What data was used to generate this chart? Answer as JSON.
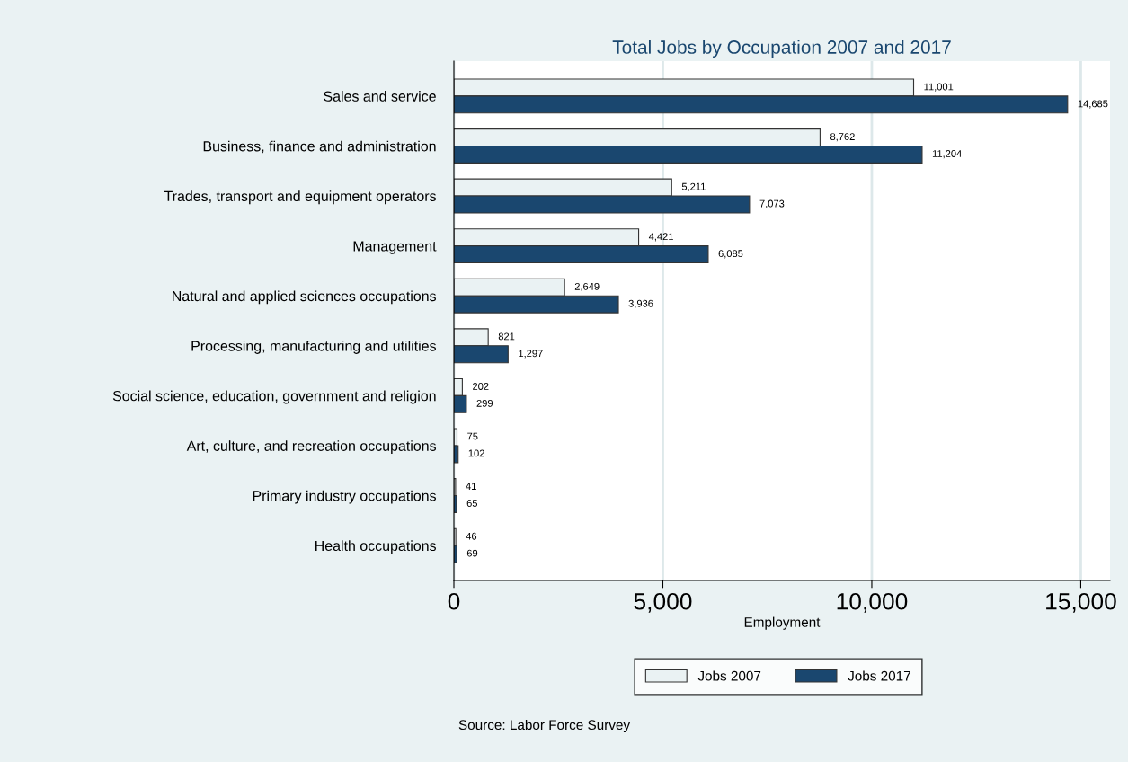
{
  "chart_data": {
    "type": "bar",
    "orientation": "horizontal",
    "title": "Total Jobs by Occupation 2007 and 2017",
    "xlabel": "Employment",
    "categories": [
      "Sales and service",
      "Business, finance and administration",
      "Trades, transport and equipment operators",
      "Management",
      "Natural and applied sciences occupations",
      "Processing, manufacturing and utilities",
      "Social science, education, government and religion",
      "Art, culture, and recreation occupations",
      "Primary industry occupations",
      "Health occupations"
    ],
    "series": [
      {
        "name": "Jobs 2007",
        "color": "#eaf2f3",
        "values": [
          11001,
          8762,
          5211,
          4421,
          2649,
          821,
          202,
          75,
          41,
          46
        ],
        "value_labels": [
          "11,001",
          "8,762",
          "5,211",
          "4,421",
          "2,649",
          "821",
          "202",
          "75",
          "41",
          "46"
        ]
      },
      {
        "name": "Jobs 2017",
        "color": "#1a476f",
        "values": [
          14685,
          11204,
          7073,
          6085,
          3936,
          1297,
          299,
          102,
          65,
          69
        ],
        "value_labels": [
          "14,685",
          "11,204",
          "7,073",
          "6,085",
          "3,936",
          "1,297",
          "299",
          "102",
          "65",
          "69"
        ]
      }
    ],
    "xlim": [
      0,
      15700
    ],
    "xticks": [
      {
        "value": 0,
        "label": "0"
      },
      {
        "value": 5000,
        "label": "5,000"
      },
      {
        "value": 10000,
        "label": "10,000"
      },
      {
        "value": 15000,
        "label": "15,000"
      }
    ],
    "grid": "x",
    "legend": "bottom",
    "annotations": [
      "Source: Labor Force Survey"
    ]
  }
}
